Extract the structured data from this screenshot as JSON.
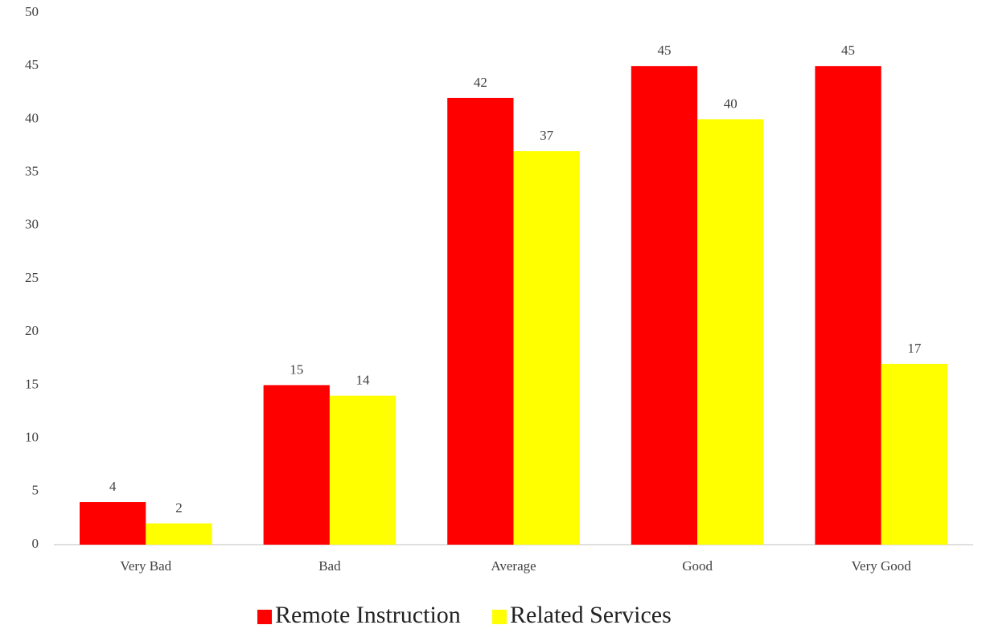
{
  "chart_data": {
    "type": "bar",
    "categories": [
      "Very Bad",
      "Bad",
      "Average",
      "Good",
      "Very Good"
    ],
    "series": [
      {
        "name": "Remote Instruction",
        "color": "#ff0000",
        "values": [
          4,
          15,
          42,
          45,
          45
        ]
      },
      {
        "name": "Related Services",
        "color": "#ffff00",
        "values": [
          2,
          14,
          37,
          40,
          17
        ]
      }
    ],
    "ylim": [
      0,
      50
    ],
    "yticks": [
      0,
      5,
      10,
      15,
      20,
      25,
      30,
      35,
      40,
      45,
      50
    ],
    "grid": false,
    "legend": "bottom"
  }
}
